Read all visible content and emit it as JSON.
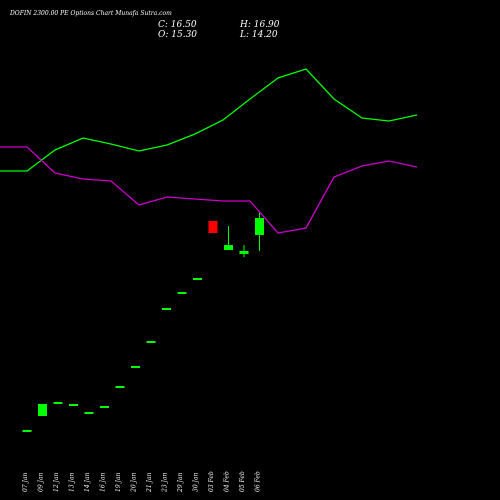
{
  "header": {
    "title": "DOFIN 2300.00 PE Options Chart Munafa Sutra.com",
    "close": "C: 16.50",
    "open": "O: 15.30",
    "high": "H: 16.90",
    "low": "L: 14.20"
  },
  "colors": {
    "background": "#000000",
    "bull": "#00ff00",
    "bear": "#ff0000",
    "line_green": "#00ff00",
    "line_magenta": "#cc00cc",
    "text": "#ffffff"
  },
  "chart_data": {
    "type": "candlestick",
    "title": "DOFIN 2300.00 PE Options Chart Munafa Sutra.com",
    "categories": [
      "07 Jan",
      "09 Jan",
      "12 Jan",
      "13 Jan",
      "14 Jan",
      "16 Jan",
      "19 Jan",
      "20 Jan",
      "21 Jan",
      "23 Jan",
      "29 Jan",
      "30 Jan",
      "03 Feb",
      "04 Feb",
      "05 Feb",
      "06 Feb"
    ],
    "candles": [
      {
        "date": "07 Jan",
        "open": 1.6,
        "high": 1.6,
        "low": 1.6,
        "close": 1.6
      },
      {
        "date": "09 Jan",
        "open": 2.6,
        "high": 3.4,
        "low": 2.6,
        "close": 3.4
      },
      {
        "date": "12 Jan",
        "open": 3.6,
        "high": 3.6,
        "low": 3.6,
        "close": 3.6
      },
      {
        "date": "13 Jan",
        "open": 3.4,
        "high": 3.4,
        "low": 3.4,
        "close": 3.4
      },
      {
        "date": "14 Jan",
        "open": 2.9,
        "high": 2.9,
        "low": 2.9,
        "close": 2.9
      },
      {
        "date": "16 Jan",
        "open": 3.3,
        "high": 3.3,
        "low": 3.3,
        "close": 3.3
      },
      {
        "date": "19 Jan",
        "open": 4.7,
        "high": 4.7,
        "low": 4.7,
        "close": 4.7
      },
      {
        "date": "20 Jan",
        "open": 6.1,
        "high": 6.1,
        "low": 6.1,
        "close": 6.1
      },
      {
        "date": "21 Jan",
        "open": 7.9,
        "high": 7.9,
        "low": 7.9,
        "close": 7.9
      },
      {
        "date": "23 Jan",
        "open": 10.2,
        "high": 10.2,
        "low": 10.2,
        "close": 10.2
      },
      {
        "date": "29 Jan",
        "open": 11.3,
        "high": 11.3,
        "low": 11.3,
        "close": 11.3
      },
      {
        "date": "30 Jan",
        "open": 12.3,
        "high": 12.3,
        "low": 12.3,
        "close": 12.3
      },
      {
        "date": "03 Feb",
        "open": 16.3,
        "high": 16.3,
        "low": 15.5,
        "close": 15.5
      },
      {
        "date": "04 Feb",
        "open": 14.3,
        "high": 16.0,
        "low": 14.3,
        "close": 14.6
      },
      {
        "date": "05 Feb",
        "open": 14.0,
        "high": 14.6,
        "low": 13.8,
        "close": 14.2
      },
      {
        "date": "06 Feb",
        "open": 15.3,
        "high": 16.9,
        "low": 14.2,
        "close": 16.5
      }
    ],
    "line_series": [
      {
        "color": "#00ff00",
        "points": [
          [
            0,
            171
          ],
          [
            27,
            171
          ],
          [
            55,
            150
          ],
          [
            83,
            138
          ],
          [
            111,
            144
          ],
          [
            139,
            151
          ],
          [
            167,
            145
          ],
          [
            195,
            134
          ],
          [
            223,
            120
          ],
          [
            250,
            99
          ],
          [
            278,
            78
          ],
          [
            306,
            69
          ],
          [
            334,
            99
          ],
          [
            362,
            118
          ],
          [
            389,
            121
          ],
          [
            417,
            115
          ]
        ]
      },
      {
        "color": "#cc00cc",
        "points": [
          [
            0,
            147
          ],
          [
            27,
            147
          ],
          [
            55,
            173
          ],
          [
            83,
            179
          ],
          [
            111,
            181
          ],
          [
            139,
            205
          ],
          [
            167,
            197
          ],
          [
            195,
            199
          ],
          [
            223,
            201
          ],
          [
            250,
            201
          ],
          [
            278,
            233
          ],
          [
            306,
            228
          ],
          [
            334,
            177
          ],
          [
            362,
            166
          ],
          [
            389,
            161
          ],
          [
            417,
            167
          ]
        ]
      }
    ],
    "xlabel": "",
    "ylabel": "",
    "grid": false
  }
}
